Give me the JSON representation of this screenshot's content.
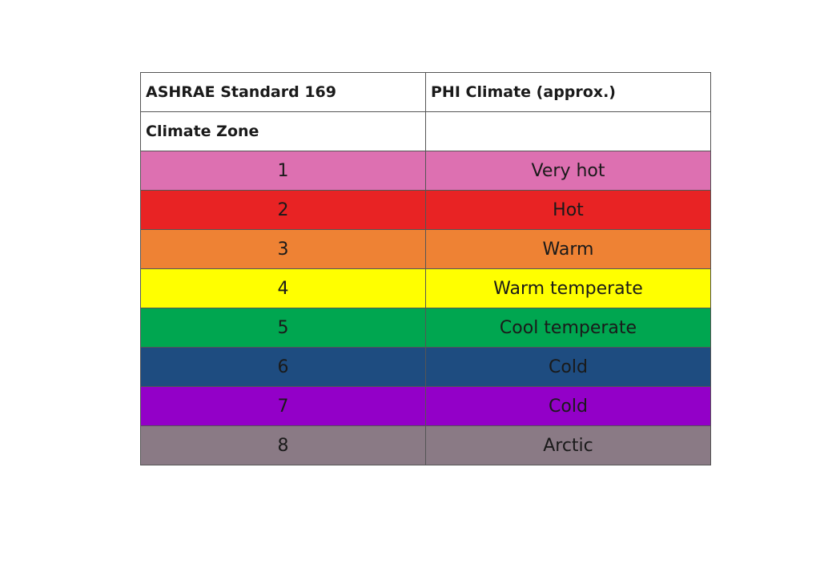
{
  "header": {
    "col1": "ASHRAE Standard 169",
    "col2": "PHI Climate (approx.)",
    "col1_sub": "Climate Zone",
    "col2_sub": ""
  },
  "rows": [
    {
      "zone": "1",
      "climate": "Very hot",
      "color": "#DD70B1"
    },
    {
      "zone": "2",
      "climate": "Hot",
      "color": "#E82324"
    },
    {
      "zone": "3",
      "climate": "Warm",
      "color": "#EE8234"
    },
    {
      "zone": "4",
      "climate": "Warm temperate",
      "color": "#FFFF00"
    },
    {
      "zone": "5",
      "climate": "Cool temperate",
      "color": "#00A650"
    },
    {
      "zone": "6",
      "climate": "Cold",
      "color": "#1E4C80"
    },
    {
      "zone": "7",
      "climate": "Cold",
      "color": "#9300C8"
    },
    {
      "zone": "8",
      "climate": "Arctic",
      "color": "#8A7A85"
    }
  ]
}
